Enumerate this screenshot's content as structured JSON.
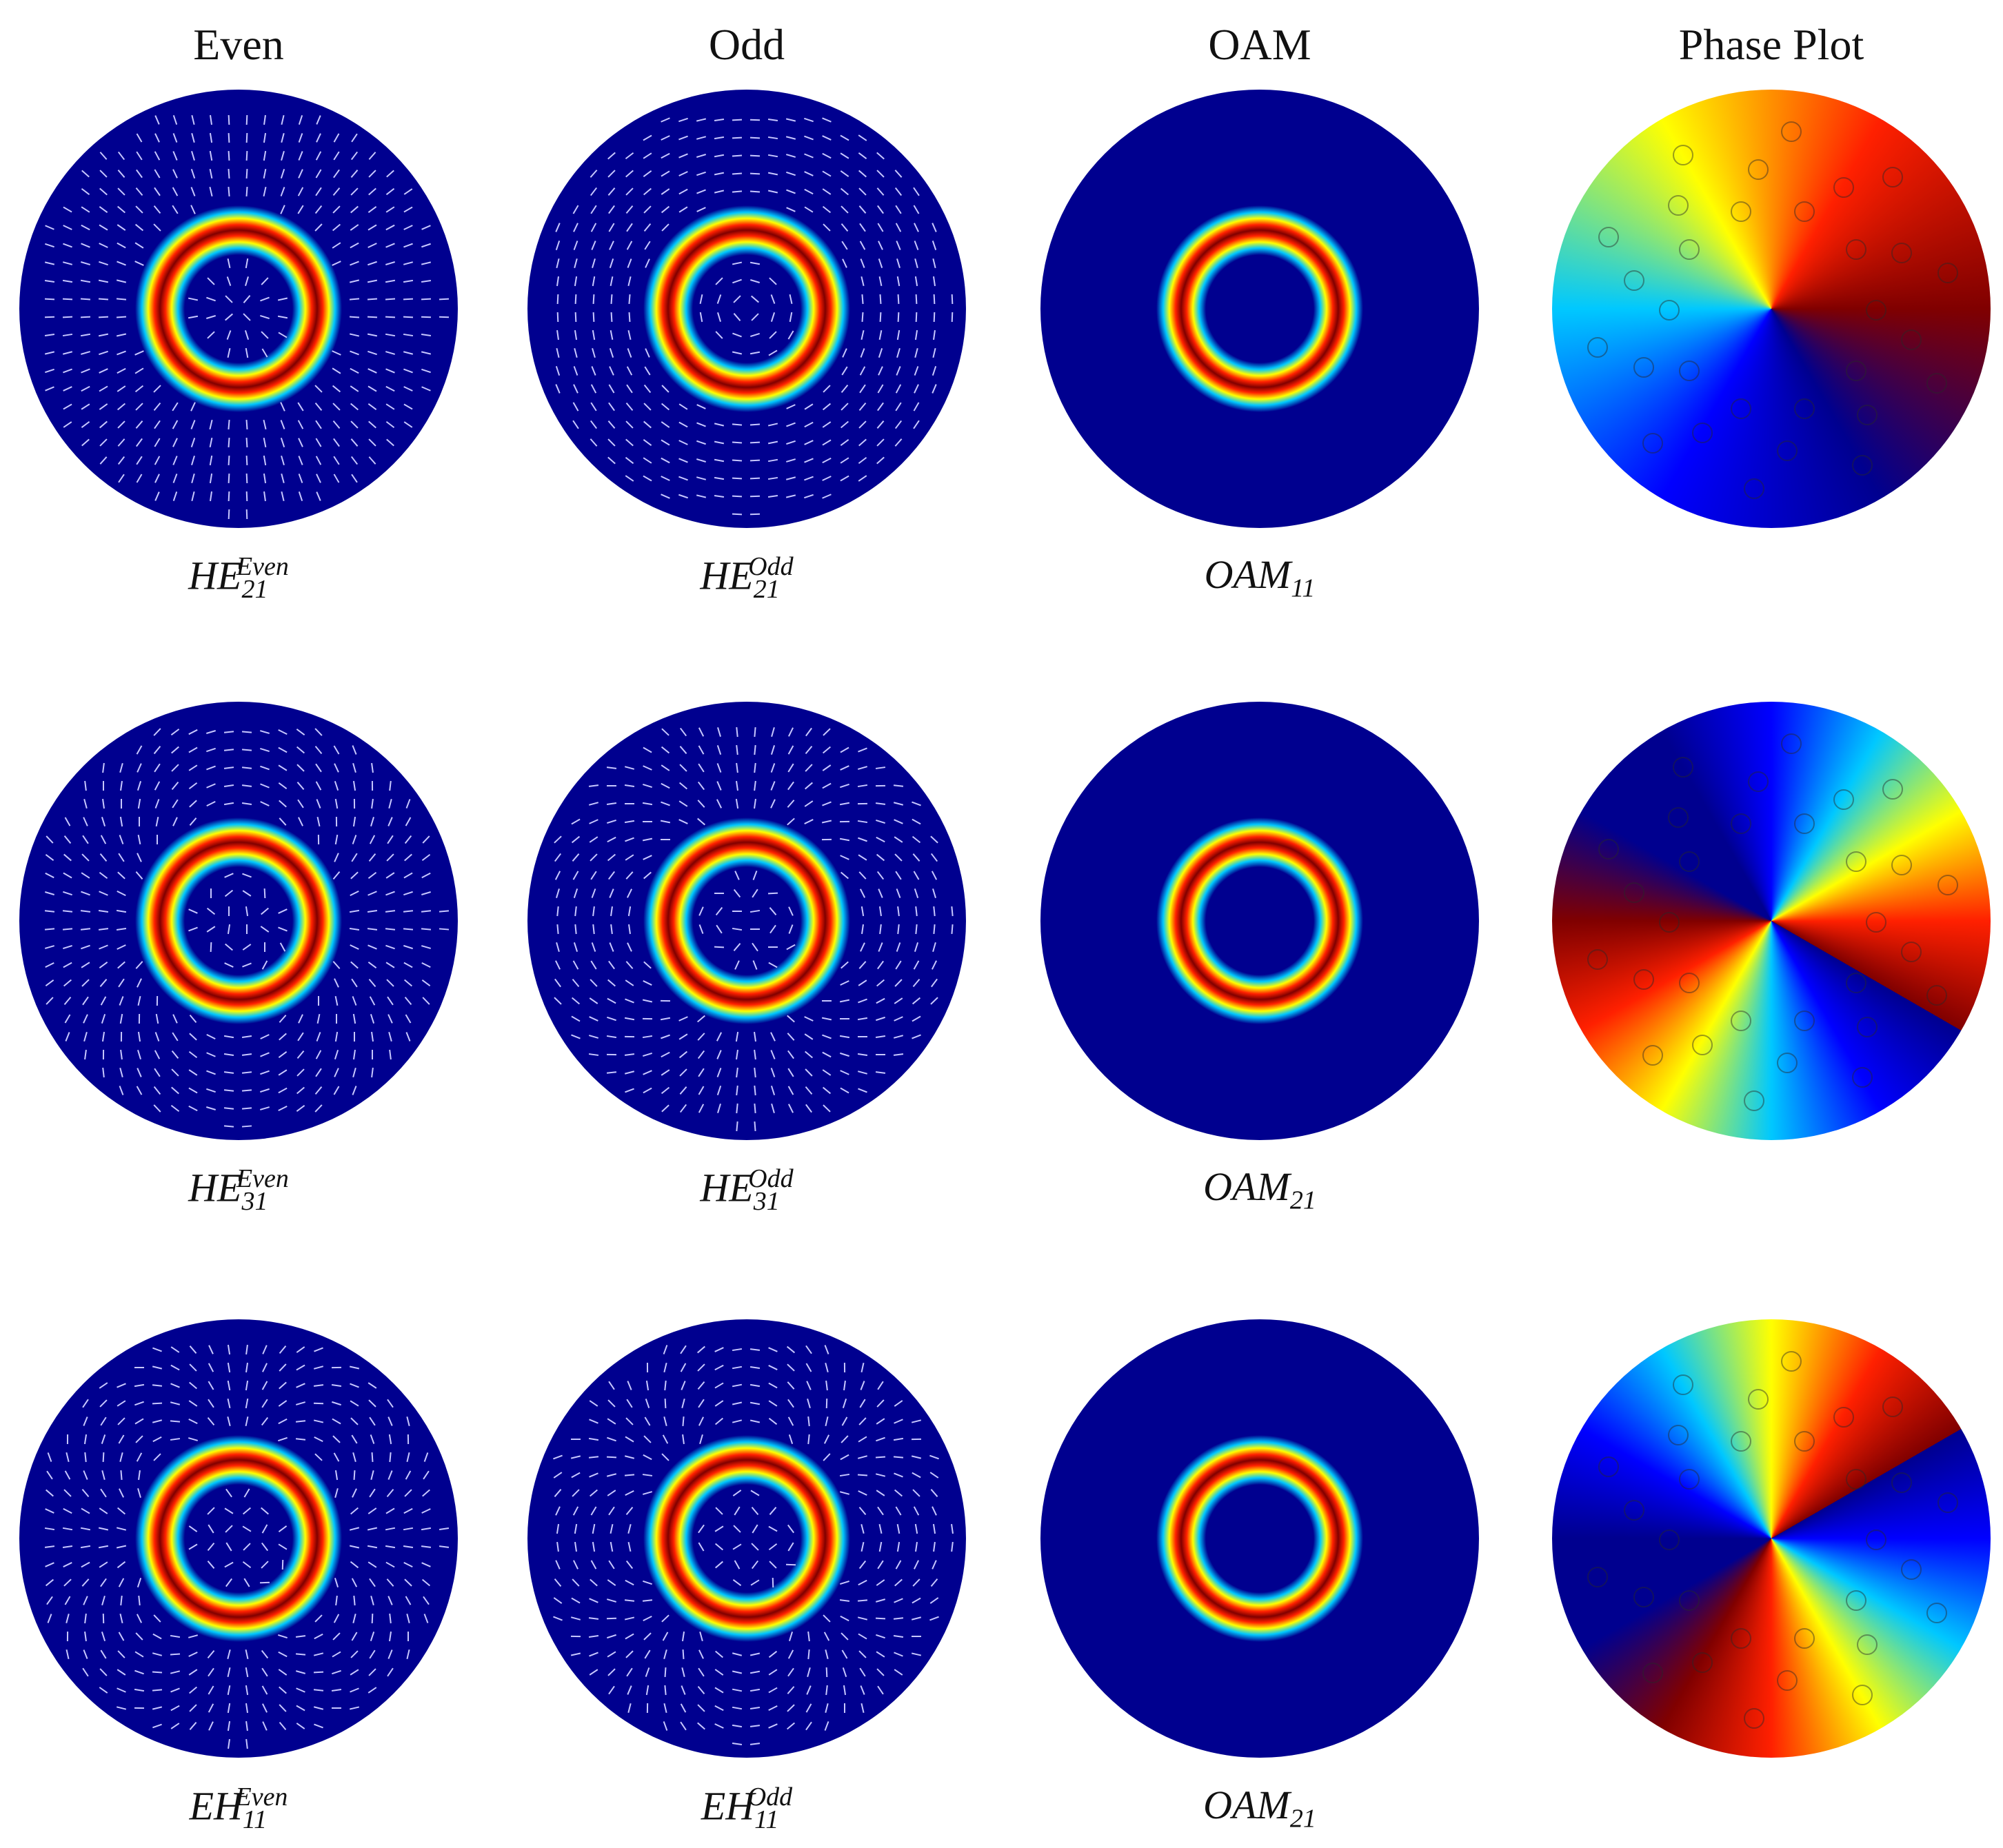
{
  "headers": [
    "Even",
    "Odd",
    "OAM",
    "Phase Plot"
  ],
  "rows": [
    {
      "labels": [
        {
          "base": "HE",
          "sub": "21",
          "sup": "Even"
        },
        {
          "base": "HE",
          "sub": "21",
          "sup": "Odd"
        },
        {
          "base": "OAM",
          "sub": "11"
        }
      ]
    },
    {
      "labels": [
        {
          "base": "HE",
          "sub": "31",
          "sup": "Even"
        },
        {
          "base": "HE",
          "sub": "31",
          "sup": "Odd"
        },
        {
          "base": "OAM",
          "sub": "21"
        }
      ]
    },
    {
      "labels": [
        {
          "base": "EH",
          "sub": "11",
          "sup": "Even"
        },
        {
          "base": "EH",
          "sub": "11",
          "sup": "Odd"
        },
        {
          "base": "OAM",
          "sub": "21"
        }
      ]
    }
  ]
}
